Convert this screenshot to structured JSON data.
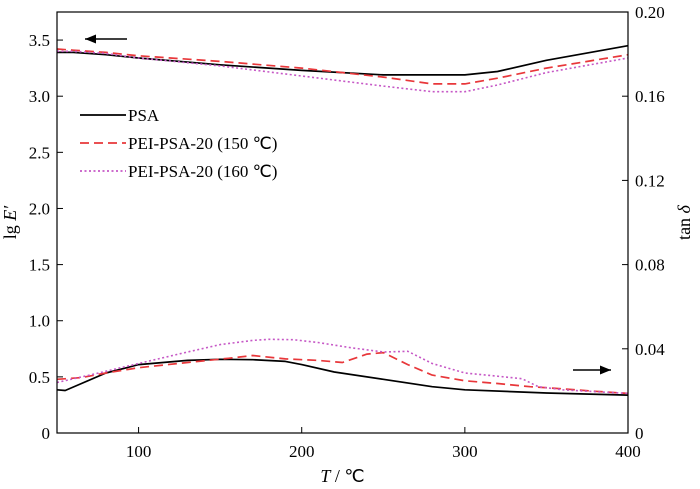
{
  "chart_data": {
    "type": "line",
    "x_axis": {
      "label_var": "T",
      "label_unit": " / ℃",
      "range": [
        50,
        400
      ],
      "ticks": [
        100,
        200,
        300,
        400
      ]
    },
    "y_left": {
      "label_prefix": "lg ",
      "label_var": "E′",
      "range": [
        0,
        3.75
      ],
      "ticks": [
        0,
        0.5,
        1.0,
        1.5,
        2.0,
        2.5,
        3.0,
        3.5
      ],
      "tick_labels": [
        "0",
        "0.5",
        "1.0",
        "1.5",
        "2.0",
        "2.5",
        "3.0",
        "3.5"
      ]
    },
    "y_right": {
      "label_prefix": "tan ",
      "label_var": "δ",
      "range": [
        0,
        0.2
      ],
      "ticks": [
        0,
        0.04,
        0.08,
        0.12,
        0.16,
        0.2
      ],
      "tick_labels": [
        "0",
        "0.04",
        "0.08",
        "0.12",
        "0.16",
        "0.20"
      ]
    },
    "legend_position": "upper-left",
    "annotations": [
      {
        "type": "arrow",
        "direction": "left",
        "meaning": "upper curves use left axis (lg E′)"
      },
      {
        "type": "arrow",
        "direction": "right",
        "meaning": "lower curves use right axis (tan δ)"
      }
    ],
    "series": [
      {
        "name": "PSA",
        "color": "#000000",
        "dash": "solid",
        "axis": "left",
        "x": [
          50,
          60,
          80,
          100,
          150,
          200,
          250,
          300,
          320,
          350,
          400
        ],
        "y": [
          3.39,
          3.39,
          3.37,
          3.34,
          3.28,
          3.23,
          3.19,
          3.19,
          3.22,
          3.32,
          3.45
        ]
      },
      {
        "name": "PEI-PSA-20 (150 ℃)",
        "color": "#e8373a",
        "dash": "dashed",
        "axis": "left",
        "x": [
          50,
          60,
          80,
          100,
          150,
          200,
          250,
          280,
          300,
          320,
          350,
          400
        ],
        "y": [
          3.42,
          3.41,
          3.39,
          3.36,
          3.31,
          3.25,
          3.17,
          3.11,
          3.11,
          3.16,
          3.25,
          3.37
        ]
      },
      {
        "name": "PEI-PSA-20 (160 ℃)",
        "color": "#c658c6",
        "dash": "dotted",
        "axis": "left",
        "x": [
          50,
          60,
          80,
          100,
          150,
          200,
          250,
          280,
          300,
          320,
          350,
          400
        ],
        "y": [
          3.4,
          3.4,
          3.38,
          3.34,
          3.27,
          3.18,
          3.09,
          3.04,
          3.04,
          3.1,
          3.21,
          3.34
        ]
      },
      {
        "name": "PSA",
        "color": "#000000",
        "dash": "solid",
        "axis": "right",
        "x": [
          50,
          55,
          65,
          80,
          100,
          130,
          150,
          170,
          190,
          200,
          220,
          250,
          280,
          300,
          350,
          400
        ],
        "y": [
          0.0205,
          0.0202,
          0.0235,
          0.0285,
          0.0325,
          0.0345,
          0.035,
          0.0348,
          0.034,
          0.0325,
          0.029,
          0.0255,
          0.022,
          0.0205,
          0.019,
          0.018
        ]
      },
      {
        "name": "PEI-PSA-20 (150 ℃)",
        "color": "#e8373a",
        "dash": "dashed",
        "axis": "right",
        "x": [
          50,
          65,
          80,
          100,
          130,
          155,
          170,
          190,
          210,
          225,
          240,
          250,
          265,
          280,
          300,
          320,
          340,
          360,
          380,
          400
        ],
        "y": [
          0.0255,
          0.0263,
          0.0285,
          0.031,
          0.0335,
          0.0355,
          0.0368,
          0.0352,
          0.0345,
          0.0335,
          0.0375,
          0.0382,
          0.0325,
          0.0275,
          0.0248,
          0.0235,
          0.022,
          0.021,
          0.0198,
          0.0188
        ]
      },
      {
        "name": "PEI-PSA-20 (160 ℃)",
        "color": "#c658c6",
        "dash": "dotted",
        "axis": "right",
        "x": [
          50,
          70,
          100,
          130,
          150,
          170,
          180,
          195,
          210,
          230,
          250,
          265,
          280,
          300,
          320,
          335,
          345,
          360,
          380,
          400
        ],
        "y": [
          0.024,
          0.0275,
          0.033,
          0.0385,
          0.042,
          0.044,
          0.0445,
          0.0443,
          0.043,
          0.0405,
          0.0385,
          0.0388,
          0.033,
          0.0285,
          0.027,
          0.0258,
          0.022,
          0.0205,
          0.0196,
          0.0188
        ]
      }
    ]
  }
}
